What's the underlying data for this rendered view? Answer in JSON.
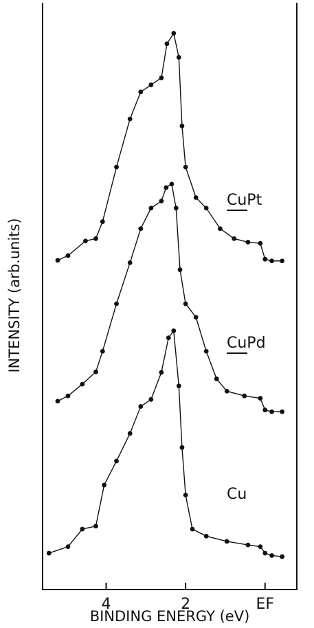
{
  "chart_data": {
    "type": "line",
    "xlabel": "BINDING ENERGY (eV)",
    "ylabel": "INTENSITY (arb.units)",
    "xlim": [
      5.6,
      -0.8
    ],
    "xticks": [
      4,
      2,
      {
        "value": 0,
        "label": "EF"
      }
    ],
    "ylim": [
      0,
      100
    ],
    "series": [
      {
        "name": "CuPt",
        "color": "#111111",
        "x": [
          5.22,
          4.96,
          4.52,
          4.26,
          4.09,
          3.74,
          3.4,
          3.13,
          2.87,
          2.61,
          2.47,
          2.3,
          2.17,
          2.09,
          2.0,
          1.74,
          1.48,
          1.13,
          0.78,
          0.43,
          0.12,
          0.0,
          -0.17,
          -0.43
        ],
        "values": [
          56.1,
          56.9,
          59.4,
          59.8,
          62.7,
          72,
          80.2,
          84.8,
          86,
          87.2,
          93,
          94.8,
          90.7,
          79,
          72,
          66.8,
          65,
          61.5,
          59.8,
          59.2,
          59,
          56.3,
          56,
          56
        ]
      },
      {
        "name": "CuPd",
        "color": "#111111",
        "x": [
          5.22,
          4.96,
          4.6,
          4.26,
          4.09,
          3.74,
          3.4,
          3.13,
          2.87,
          2.61,
          2.49,
          2.35,
          2.24,
          2.14,
          2.0,
          1.74,
          1.48,
          1.22,
          0.96,
          0.52,
          0.12,
          0.0,
          -0.17,
          -0.43
        ],
        "values": [
          32.1,
          33,
          35,
          37.1,
          40.6,
          48.7,
          55.7,
          61.5,
          65,
          66.2,
          68.5,
          69.1,
          65,
          54.5,
          48.7,
          46.4,
          40.6,
          35.9,
          33.8,
          33,
          32.6,
          30.6,
          30.3,
          30.3
        ]
      },
      {
        "name": "Cu",
        "color": "#111111",
        "x": [
          5.44,
          4.96,
          4.6,
          4.26,
          4.05,
          3.74,
          3.4,
          3.13,
          2.87,
          2.61,
          2.43,
          2.3,
          2.17,
          2.09,
          2.0,
          1.83,
          1.48,
          0.96,
          0.43,
          0.12,
          0.0,
          -0.17,
          -0.43
        ],
        "values": [
          6.2,
          7.3,
          10.3,
          10.8,
          17.8,
          21.9,
          26.6,
          31.2,
          32.4,
          37,
          42.9,
          44.1,
          34.7,
          24.2,
          16.1,
          10.3,
          9.1,
          8.2,
          7.6,
          7.3,
          6.2,
          5.8,
          5.6
        ]
      }
    ]
  }
}
